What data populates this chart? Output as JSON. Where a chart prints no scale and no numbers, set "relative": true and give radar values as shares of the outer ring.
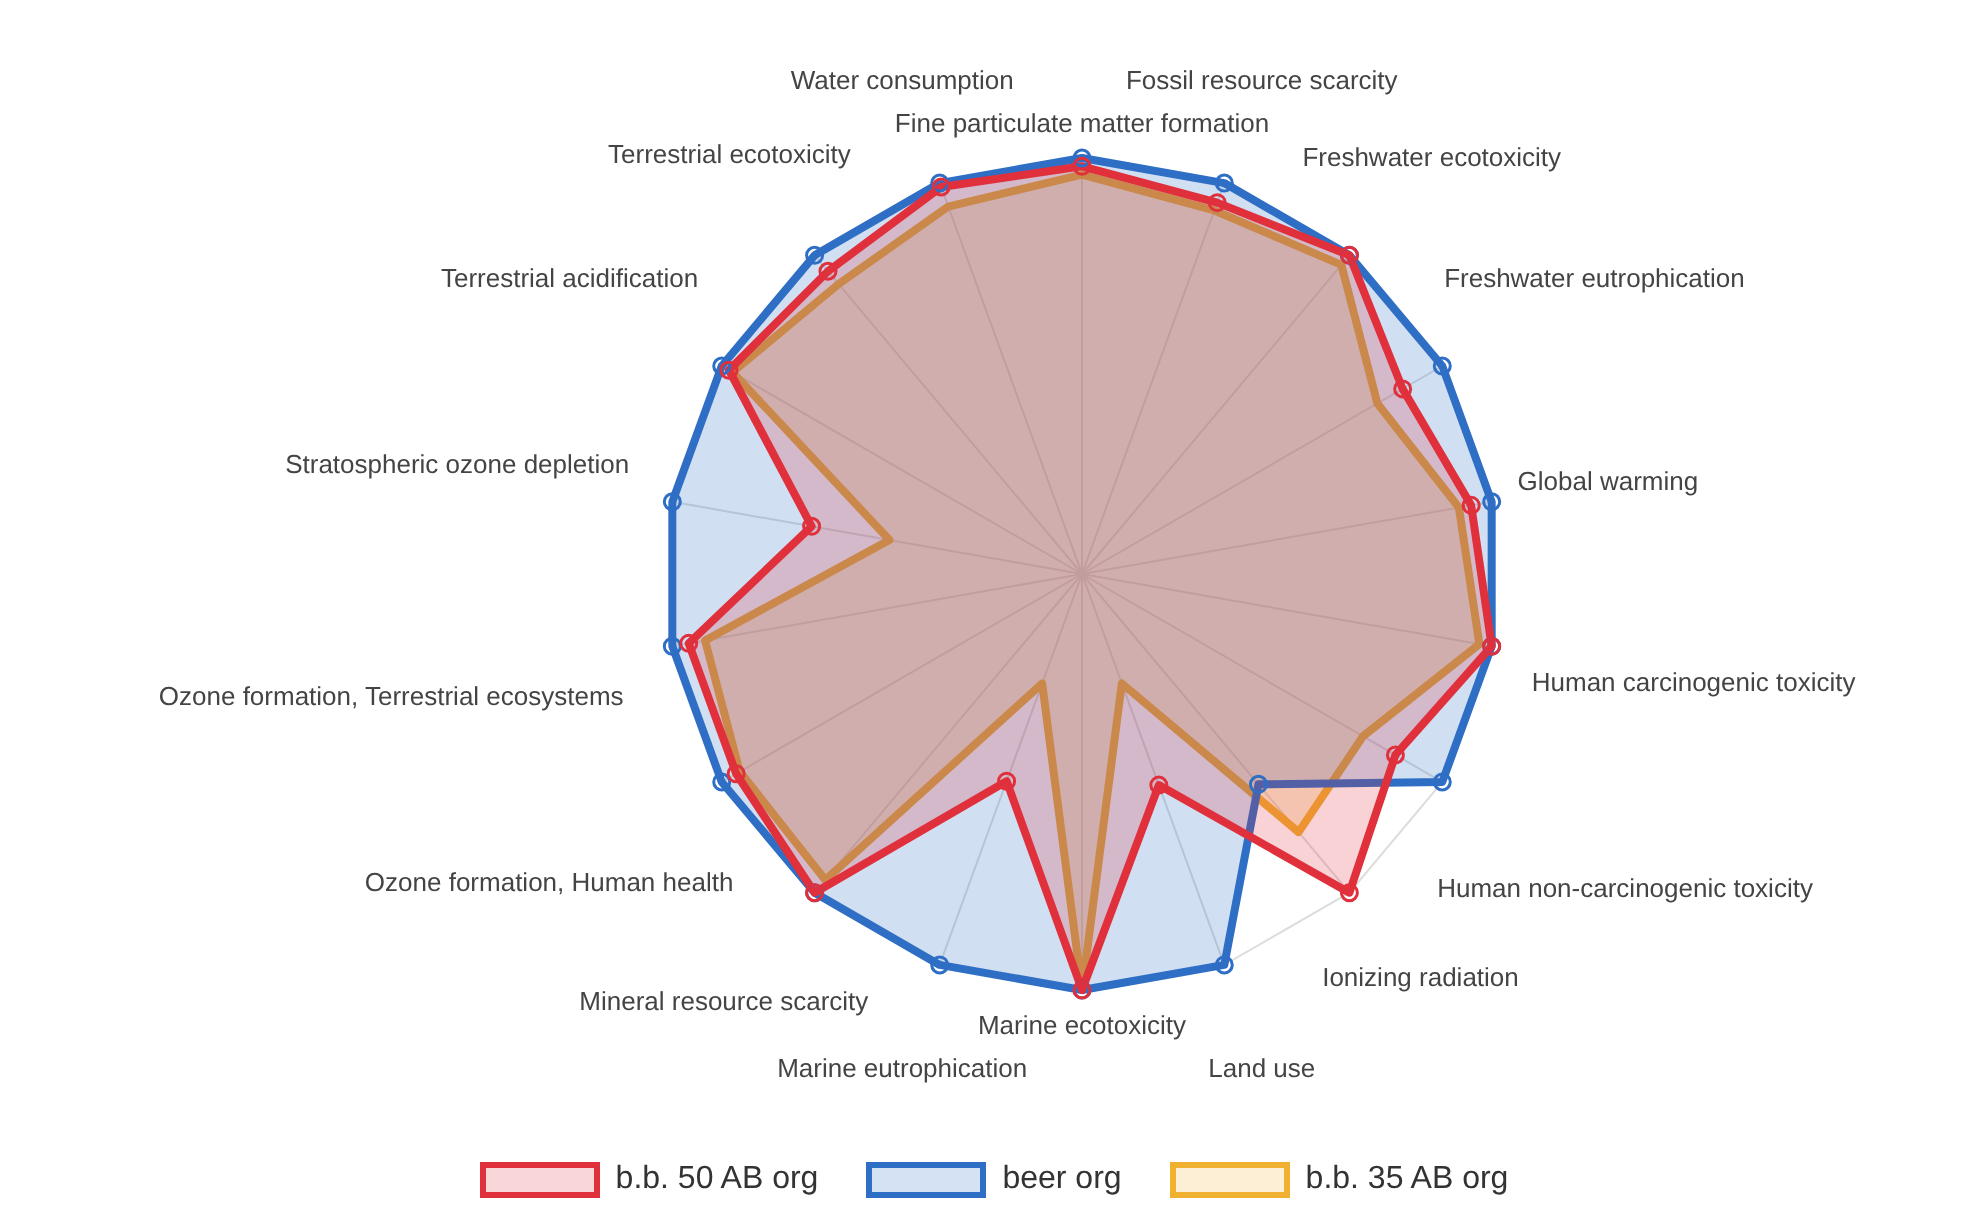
{
  "chart_data": {
    "type": "radar",
    "relative": true,
    "grid": true,
    "legend": "bottom",
    "categories": [
      "Fine particulate matter formation",
      "Fossil resource scarcity",
      "Freshwater ecotoxicity",
      "Freshwater eutrophication",
      "Global warming",
      "Human carcinogenic toxicity",
      "Human non-carcinogenic toxicity",
      "Ionizing radiation",
      "Land use",
      "Marine ecotoxicity",
      "Marine eutrophication",
      "Mineral resource scarcity",
      "Ozone formation, Human health",
      "Ozone formation, Terrestrial ecosystems",
      "Stratospheric ozone depletion",
      "Terrestrial acidification",
      "Terrestrial ecotoxicity",
      "Water consumption"
    ],
    "series": [
      {
        "name": "b.b. 50 AB org",
        "color": "#e0303c",
        "marker": "circle",
        "values": [
          0.98,
          0.95,
          1,
          0.89,
          0.95,
          1,
          0.87,
          1,
          0.54,
          1,
          0.53,
          1,
          0.96,
          0.96,
          0.66,
          0.98,
          0.95,
          0.99
        ]
      },
      {
        "name": "beer org",
        "color": "#2e6ec4",
        "marker": "circle",
        "values": [
          1,
          1,
          1,
          1,
          1,
          1,
          1,
          0.66,
          1,
          1,
          1,
          1,
          1,
          1,
          1,
          1,
          1,
          1
        ]
      },
      {
        "name": "b.b. 35 AB org",
        "color": "#f0b030",
        "marker": "none",
        "values": [
          0.96,
          0.93,
          0.97,
          0.82,
          0.92,
          0.97,
          0.78,
          0.81,
          0.28,
          1,
          0.28,
          0.96,
          0.95,
          0.92,
          0.47,
          0.97,
          0.91,
          0.94
        ]
      }
    ]
  }
}
